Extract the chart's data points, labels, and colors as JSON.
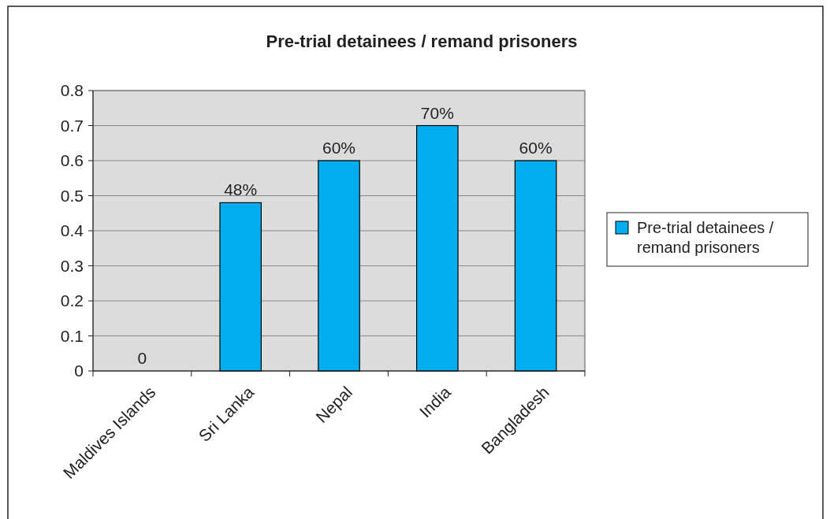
{
  "chart_data": {
    "type": "bar",
    "title": "Pre-trial detainees / remand prisoners",
    "categories": [
      "Maldives Islands",
      "Sri Lanka",
      "Nepal",
      "India",
      "Bangladesh"
    ],
    "series": [
      {
        "name": "Pre-trial detainees / remand prisoners",
        "color": "#00aeef",
        "values": [
          0,
          0.48,
          0.6,
          0.7,
          0.6
        ],
        "value_labels": [
          "0",
          "48%",
          "60%",
          "70%",
          "60%"
        ]
      }
    ],
    "ylim": [
      0,
      0.8
    ],
    "yticks": [
      0,
      0.1,
      0.2,
      0.3,
      0.4,
      0.5,
      0.6,
      0.7,
      0.8
    ],
    "grid": "y",
    "legend": "right"
  }
}
